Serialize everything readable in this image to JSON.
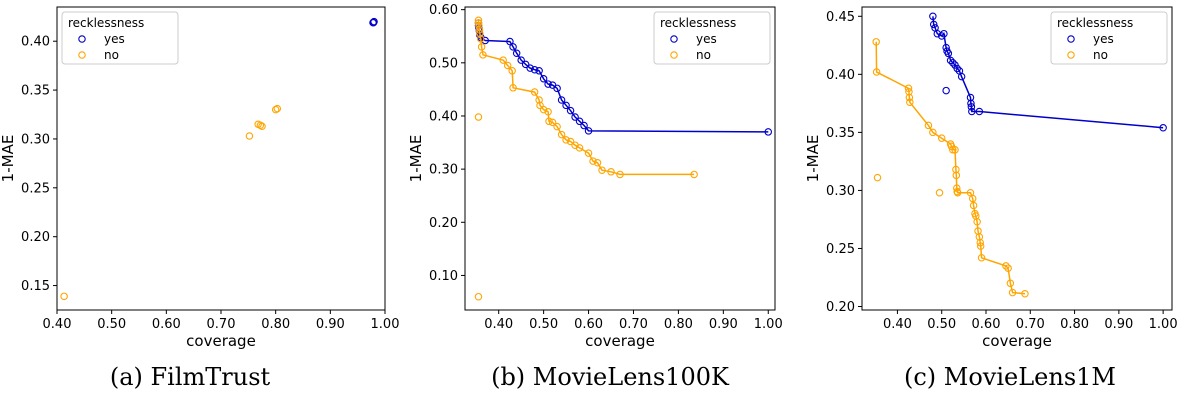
{
  "colors": {
    "yes": "#0000cc",
    "no": "#ffa500"
  },
  "chart_data": [
    {
      "type": "scatter",
      "caption": "(a) FilmTrust",
      "xlabel": "coverage",
      "ylabel": "1-MAE",
      "xlim": [
        0.4,
        1.0
      ],
      "ylim": [
        0.125,
        0.435
      ],
      "xticks": [
        "0.40",
        "0.50",
        "0.60",
        "0.70",
        "0.80",
        "0.90",
        "1.00"
      ],
      "yticks": [
        "0.15",
        "0.20",
        "0.25",
        "0.30",
        "0.35",
        "0.40"
      ],
      "legend_title": "recklessness",
      "legend_position": "top-left",
      "series": [
        {
          "name": "yes",
          "key": "yes",
          "connected": false,
          "x": [
            0.978,
            0.98,
            0.979
          ],
          "y": [
            0.419,
            0.42,
            0.419
          ]
        },
        {
          "name": "no",
          "key": "no",
          "connected": false,
          "x": [
            0.413,
            0.752,
            0.768,
            0.772,
            0.775,
            0.8,
            0.803
          ],
          "y": [
            0.139,
            0.303,
            0.315,
            0.314,
            0.313,
            0.33,
            0.331
          ]
        }
      ]
    },
    {
      "type": "line",
      "caption": "(b) MovieLens100K",
      "xlabel": "coverage",
      "ylabel": "1-MAE",
      "xlim": [
        0.325,
        1.015
      ],
      "ylim": [
        0.035,
        0.605
      ],
      "xticks": [
        "0.40",
        "0.50",
        "0.60",
        "0.70",
        "0.80",
        "0.90",
        "1.00"
      ],
      "yticks": [
        "0.10",
        "0.20",
        "0.30",
        "0.40",
        "0.50",
        "0.60"
      ],
      "legend_title": "recklessness",
      "legend_position": "top-right",
      "series": [
        {
          "name": "yes",
          "key": "yes",
          "connected": true,
          "x": [
            0.355,
            0.355,
            0.356,
            0.357,
            0.358,
            0.36,
            0.37,
            0.425,
            0.432,
            0.44,
            0.45,
            0.46,
            0.47,
            0.48,
            0.49,
            0.5,
            0.51,
            0.52,
            0.53,
            0.54,
            0.55,
            0.56,
            0.57,
            0.58,
            0.59,
            0.6,
            1.0
          ],
          "y": [
            0.575,
            0.57,
            0.565,
            0.56,
            0.552,
            0.548,
            0.542,
            0.54,
            0.53,
            0.518,
            0.505,
            0.497,
            0.49,
            0.487,
            0.485,
            0.47,
            0.46,
            0.458,
            0.452,
            0.43,
            0.42,
            0.41,
            0.398,
            0.39,
            0.382,
            0.372,
            0.37
          ]
        },
        {
          "name": "no",
          "key": "no",
          "connected": true,
          "x": [
            0.355,
            0.355,
            0.356,
            0.357,
            0.358,
            0.36,
            0.362,
            0.365,
            0.41,
            0.42,
            0.43,
            0.432,
            0.48,
            0.49,
            0.492,
            0.5,
            0.51,
            0.512,
            0.52,
            0.53,
            0.54,
            0.55,
            0.56,
            0.57,
            0.58,
            0.6,
            0.61,
            0.62,
            0.63,
            0.65,
            0.67,
            0.835
          ],
          "y": [
            0.58,
            0.575,
            0.57,
            0.562,
            0.555,
            0.545,
            0.53,
            0.515,
            0.505,
            0.495,
            0.485,
            0.453,
            0.445,
            0.43,
            0.42,
            0.412,
            0.408,
            0.39,
            0.388,
            0.38,
            0.365,
            0.355,
            0.352,
            0.345,
            0.34,
            0.33,
            0.315,
            0.312,
            0.298,
            0.295,
            0.29,
            0.29
          ]
        },
        {
          "name": "",
          "key": "no",
          "connected": false,
          "x": [
            0.355,
            0.355
          ],
          "y": [
            0.398,
            0.06
          ]
        }
      ]
    },
    {
      "type": "line",
      "caption": "(c) MovieLens1M",
      "xlabel": "coverage",
      "ylabel": "1-MAE",
      "xlim": [
        0.32,
        1.02
      ],
      "ylim": [
        0.197,
        0.458
      ],
      "xticks": [
        "0.40",
        "0.50",
        "0.60",
        "0.70",
        "0.80",
        "0.90",
        "1.00"
      ],
      "yticks": [
        "0.20",
        "0.25",
        "0.30",
        "0.35",
        "0.40",
        "0.45"
      ],
      "legend_title": "recklessness",
      "legend_position": "top-right",
      "series": [
        {
          "name": "yes",
          "key": "yes",
          "connected": true,
          "x": [
            0.48,
            0.482,
            0.485,
            0.49,
            0.5,
            0.505,
            0.51,
            0.512,
            0.515,
            0.52,
            0.525,
            0.53,
            0.535,
            0.54,
            0.545,
            0.565,
            0.566,
            0.567,
            0.568,
            0.585,
            1.0
          ],
          "y": [
            0.45,
            0.443,
            0.44,
            0.435,
            0.433,
            0.435,
            0.423,
            0.42,
            0.418,
            0.412,
            0.41,
            0.408,
            0.405,
            0.403,
            0.398,
            0.38,
            0.375,
            0.372,
            0.368,
            0.368,
            0.354
          ]
        },
        {
          "name": "no",
          "key": "no",
          "connected": true,
          "x": [
            0.352,
            0.353,
            0.425,
            0.426,
            0.427,
            0.428,
            0.47,
            0.48,
            0.5,
            0.52,
            0.522,
            0.525,
            0.53,
            0.532,
            0.533,
            0.534,
            0.535,
            0.536,
            0.565,
            0.57,
            0.572,
            0.575,
            0.577,
            0.58,
            0.582,
            0.585,
            0.587,
            0.588,
            0.59,
            0.645,
            0.65,
            0.655,
            0.66,
            0.688
          ],
          "y": [
            0.428,
            0.402,
            0.388,
            0.385,
            0.38,
            0.376,
            0.356,
            0.35,
            0.345,
            0.34,
            0.338,
            0.335,
            0.335,
            0.318,
            0.313,
            0.302,
            0.299,
            0.298,
            0.298,
            0.293,
            0.287,
            0.28,
            0.278,
            0.273,
            0.265,
            0.26,
            0.255,
            0.252,
            0.242,
            0.235,
            0.233,
            0.22,
            0.212,
            0.211
          ]
        },
        {
          "name": "",
          "key": "no",
          "connected": false,
          "x": [
            0.355,
            0.495
          ],
          "y": [
            0.311,
            0.298
          ]
        },
        {
          "name": "",
          "key": "yes",
          "connected": false,
          "x": [
            0.51
          ],
          "y": [
            0.386
          ]
        }
      ]
    }
  ]
}
